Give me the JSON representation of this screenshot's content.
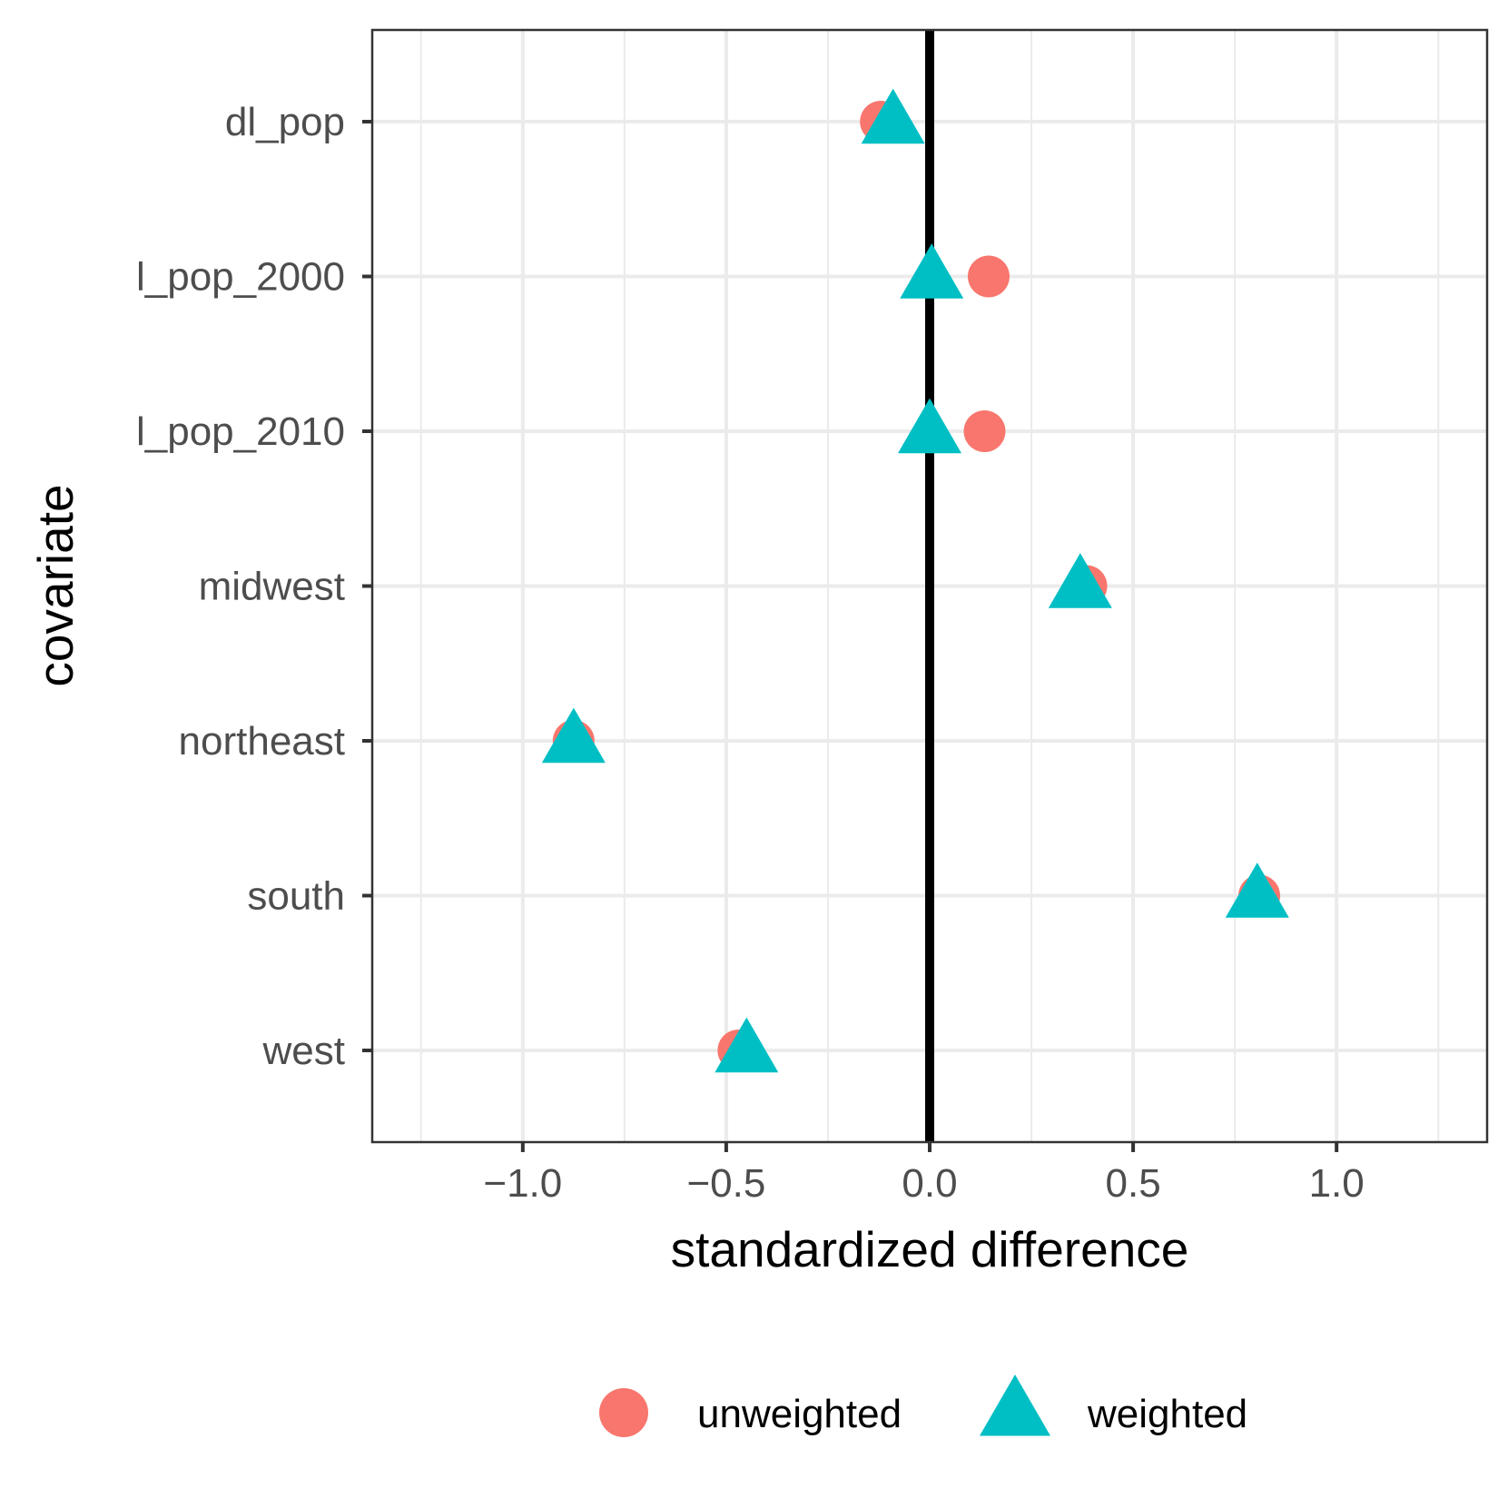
{
  "chart_data": {
    "type": "scatter",
    "xlabel": "standardized difference",
    "ylabel": "covariate",
    "xlim": [
      -1.37,
      1.37
    ],
    "x_ticks": [
      -1.0,
      -0.5,
      0.0,
      0.5,
      1.0
    ],
    "x_tick_labels": [
      "−1.0",
      "−0.5",
      "0.0",
      "0.5",
      "1.0"
    ],
    "categories": [
      "dl_pop",
      "l_pop_2000",
      "l_pop_2010",
      "midwest",
      "northeast",
      "south",
      "west"
    ],
    "reference_line_x": 0.0,
    "grid": true,
    "legend_position": "bottom",
    "series": [
      {
        "name": "unweighted",
        "shape": "circle",
        "color": "#F8766D",
        "values": [
          -0.12,
          0.145,
          0.135,
          0.385,
          -0.875,
          0.81,
          -0.47
        ]
      },
      {
        "name": "weighted",
        "shape": "triangle",
        "color": "#00BFC4",
        "values": [
          -0.09,
          0.005,
          0.0,
          0.37,
          -0.875,
          0.805,
          -0.45
        ]
      }
    ]
  }
}
